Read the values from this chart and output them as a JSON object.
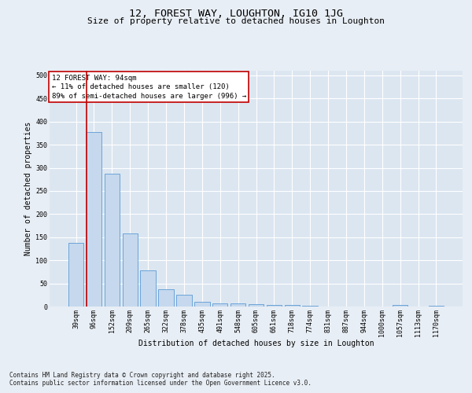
{
  "title": "12, FOREST WAY, LOUGHTON, IG10 1JG",
  "subtitle": "Size of property relative to detached houses in Loughton",
  "xlabel": "Distribution of detached houses by size in Loughton",
  "ylabel": "Number of detached properties",
  "categories": [
    "39sqm",
    "96sqm",
    "152sqm",
    "209sqm",
    "265sqm",
    "322sqm",
    "378sqm",
    "435sqm",
    "491sqm",
    "548sqm",
    "605sqm",
    "661sqm",
    "718sqm",
    "774sqm",
    "831sqm",
    "887sqm",
    "944sqm",
    "1000sqm",
    "1057sqm",
    "1113sqm",
    "1170sqm"
  ],
  "values": [
    138,
    378,
    288,
    158,
    79,
    38,
    26,
    10,
    6,
    6,
    5,
    3,
    3,
    1,
    0,
    0,
    0,
    0,
    3,
    0,
    2
  ],
  "bar_color": "#c5d8ed",
  "bar_edge_color": "#5b9bd5",
  "vline_color": "#c00000",
  "annotation_text": "12 FOREST WAY: 94sqm\n← 11% of detached houses are smaller (120)\n89% of semi-detached houses are larger (996) →",
  "annotation_box_color": "#ffffff",
  "annotation_box_edge_color": "#c00000",
  "ylim": [
    0,
    510
  ],
  "yticks": [
    0,
    50,
    100,
    150,
    200,
    250,
    300,
    350,
    400,
    450,
    500
  ],
  "bg_color": "#e8eef5",
  "plot_bg_color": "#dce6f1",
  "grid_color": "#ffffff",
  "footer": "Contains HM Land Registry data © Crown copyright and database right 2025.\nContains public sector information licensed under the Open Government Licence v3.0.",
  "title_fontsize": 9.5,
  "subtitle_fontsize": 8,
  "axis_label_fontsize": 7,
  "tick_fontsize": 6,
  "annotation_fontsize": 6.5,
  "footer_fontsize": 5.5
}
